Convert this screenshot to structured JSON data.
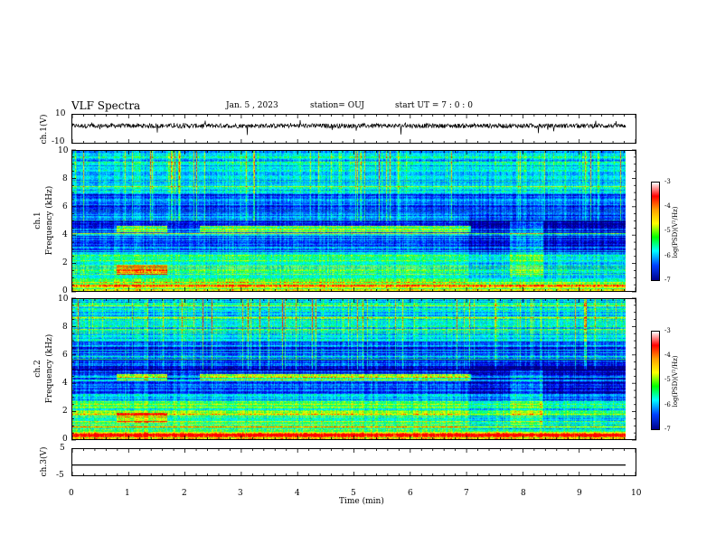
{
  "header": {
    "title": "VLF Spectra",
    "date": "Jan. 5 , 2023",
    "station": "station= OUJ",
    "start": "start UT = 7 : 0 : 0"
  },
  "chart_data": {
    "type": "heatmap",
    "x_axis": {
      "label": "Time (min)",
      "range": [
        0,
        10
      ],
      "ticks": [
        "0",
        "1",
        "2",
        "3",
        "4",
        "5",
        "6",
        "7",
        "8",
        "9",
        "10"
      ]
    },
    "panels": [
      {
        "name": "waveform1",
        "type": "line",
        "ylabel": "ch.1(V)",
        "ylim": [
          -10,
          10
        ],
        "yticks": [
          "10",
          "-10"
        ]
      },
      {
        "name": "spectrogram1",
        "type": "heatmap",
        "ylabel_top": "ch.1",
        "ylabel": "Frequency (kHz)",
        "ylim": [
          0,
          10
        ],
        "yticks": [
          "0",
          "2",
          "4",
          "6",
          "8",
          "10"
        ],
        "colorbar": {
          "ticks": [
            "-3",
            "-4",
            "-5",
            "-6",
            "-7"
          ],
          "label": "log(PSD)(V²/Hz)"
        }
      },
      {
        "name": "spectrogram2",
        "type": "heatmap",
        "ylabel_top": "ch.2",
        "ylabel": "Frequency (kHz)",
        "ylim": [
          0,
          10
        ],
        "yticks": [
          "0",
          "2",
          "4",
          "6",
          "8",
          "10"
        ],
        "colorbar": {
          "ticks": [
            "-3",
            "-4",
            "-5",
            "-6",
            "-7"
          ],
          "label": "log(PSD)(V²/Hz)"
        }
      },
      {
        "name": "waveform3",
        "type": "line",
        "ylabel": "ch.3(V)",
        "ylim": [
          -5,
          5
        ],
        "yticks": [
          "5",
          "-5"
        ],
        "values_level": -1
      }
    ]
  }
}
